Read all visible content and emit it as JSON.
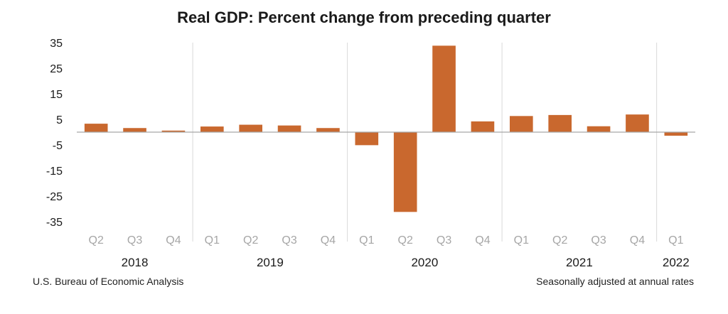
{
  "chart_data": {
    "type": "bar",
    "title": "Real GDP:  Percent change from preceding quarter",
    "categories": [
      "Q2",
      "Q3",
      "Q4",
      "Q1",
      "Q2",
      "Q3",
      "Q4",
      "Q1",
      "Q2",
      "Q3",
      "Q4",
      "Q1",
      "Q2",
      "Q3",
      "Q4",
      "Q1"
    ],
    "years": [
      {
        "label": "2018",
        "start": 0,
        "end": 2
      },
      {
        "label": "2019",
        "start": 3,
        "end": 6
      },
      {
        "label": "2020",
        "start": 7,
        "end": 10
      },
      {
        "label": "2021",
        "start": 11,
        "end": 14
      },
      {
        "label": "2022",
        "start": 15,
        "end": 15
      }
    ],
    "values": [
      3.3,
      1.6,
      0.6,
      2.2,
      2.9,
      2.6,
      1.6,
      -5.1,
      -31.2,
      33.8,
      4.2,
      6.3,
      6.7,
      2.3,
      6.9,
      -1.4
    ],
    "ylim": [
      -35,
      35
    ],
    "yticks": [
      35,
      25,
      15,
      5,
      -5,
      -15,
      -25,
      -35
    ],
    "bar_color": "#C9682E",
    "grid": false
  },
  "footer": {
    "source": "U.S. Bureau of Economic Analysis",
    "note": "Seasonally adjusted at annual rates"
  }
}
